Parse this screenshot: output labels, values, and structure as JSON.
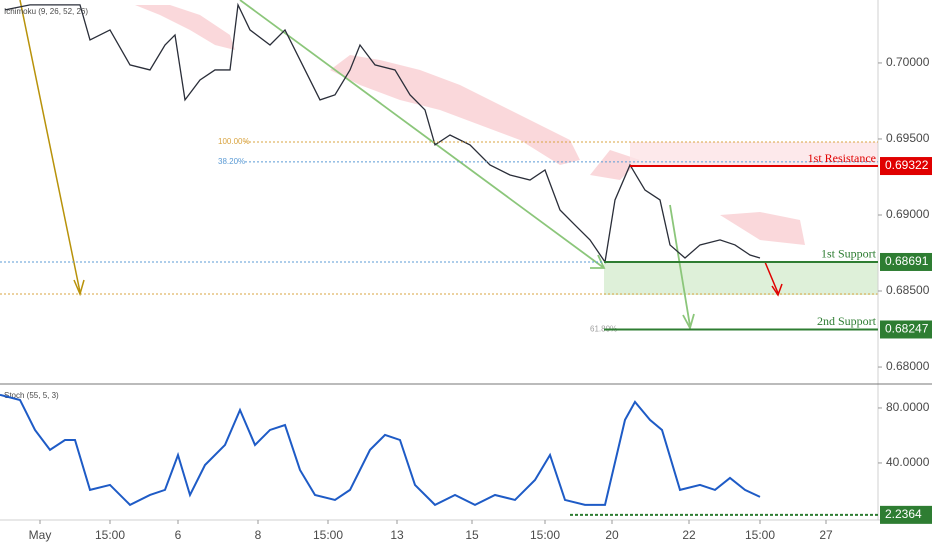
{
  "chart_data": [
    {
      "type": "line",
      "indicator_label": "Ichimoku (9, 26, 52, 26)",
      "color": "#2a2e39",
      "x": [
        1,
        6,
        12,
        16,
        18,
        22,
        26,
        30,
        33,
        35,
        37,
        40,
        43,
        46,
        47.6,
        50,
        54,
        57,
        60,
        64,
        67,
        70,
        72,
        75,
        79,
        82,
        85,
        87,
        90,
        94,
        98,
        102,
        106,
        109,
        112,
        115,
        118,
        121,
        123,
        126,
        129,
        132,
        134,
        137,
        140,
        144,
        147,
        150,
        152
      ],
      "values": [
        0.70349,
        0.70382,
        0.70382,
        0.70382,
        0.70151,
        0.70217,
        0.69987,
        0.69954,
        0.70118,
        0.70184,
        0.69757,
        0.69888,
        0.69954,
        0.69954,
        0.70382,
        0.70217,
        0.70118,
        0.70217,
        0.7002,
        0.69757,
        0.6979,
        0.69954,
        0.70118,
        0.69987,
        0.69954,
        0.6979,
        0.69691,
        0.69461,
        0.69526,
        0.69461,
        0.69329,
        0.69263,
        0.6923,
        0.69296,
        0.69033,
        0.68934,
        0.68836,
        0.68691,
        0.69099,
        0.69329,
        0.69164,
        0.69099,
        0.68803,
        0.68717,
        0.68803,
        0.68836,
        0.68803,
        0.68737,
        0.68717
      ],
      "xlim": [
        0,
        175.6
      ],
      "ylim": [
        0.67895,
        0.70414
      ],
      "yticks": [
        {
          "value": 0.7,
          "label": "0.70000"
        },
        {
          "value": 0.695,
          "label": "0.69500"
        },
        {
          "value": 0.69,
          "label": "0.69000"
        },
        {
          "value": 0.685,
          "label": "0.68500"
        },
        {
          "value": 0.68,
          "label": "0.68000"
        }
      ],
      "levels": [
        {
          "label": "1st Resistance",
          "value": 0.69322,
          "value_label": "0.69322",
          "color": "#e00000"
        },
        {
          "label": "1st Support",
          "value": 0.68691,
          "value_label": "0.68691",
          "color": "#2e7d32"
        },
        {
          "label": "2nd Support",
          "value": 0.68247,
          "value_label": "0.68247",
          "color": "#2e7d32"
        }
      ],
      "fib_levels": [
        {
          "label": "100.00%",
          "value": 0.6948,
          "color": "#d9a441"
        },
        {
          "label": "38.20%",
          "value": 0.69349,
          "color": "#5b9bd5"
        },
        {
          "label": "61.80%",
          "value": 0.68247,
          "color": "#9e9e9e"
        }
      ]
    },
    {
      "type": "line",
      "indicator_label": "Stoch (55, 5, 3)",
      "color": "#1e5bc6",
      "x": [
        0,
        4,
        7,
        10,
        13,
        15,
        18,
        22,
        26,
        30,
        33,
        35.6,
        38,
        41,
        45,
        48,
        51,
        54,
        57,
        60,
        63,
        67,
        70,
        74,
        77,
        80,
        83,
        87,
        91,
        95,
        99,
        103,
        107,
        110,
        113,
        117,
        121,
        125,
        127,
        130,
        132.4,
        136,
        140,
        143,
        146,
        149,
        152
      ],
      "values": [
        89.5,
        85.8,
        64,
        49.5,
        56.7,
        56.7,
        20.4,
        24,
        9.5,
        16.7,
        20.4,
        45.8,
        16.7,
        38.5,
        53.1,
        78.5,
        53.1,
        64,
        67.6,
        34.9,
        16.7,
        13.1,
        20.4,
        49.5,
        60.4,
        56.7,
        24,
        9.5,
        16.7,
        9.5,
        16.7,
        13.1,
        27.6,
        45.8,
        13.1,
        9.5,
        9.5,
        71.3,
        84.4,
        71.3,
        64,
        20.4,
        24,
        20.4,
        29.1,
        20.4,
        15.3
      ],
      "xlim": [
        0,
        175.6
      ],
      "ylim": [
        -1.5,
        96.7
      ],
      "yticks": [
        {
          "value": 80,
          "label": "80.0000"
        },
        {
          "value": 40,
          "label": "40.0000"
        }
      ],
      "level": {
        "value": 2.2364,
        "value_label": "2.2364",
        "color": "#2e7d32"
      },
      "xticks": [
        {
          "value": 8,
          "label": "May"
        },
        {
          "value": 22,
          "label": "15:00"
        },
        {
          "value": 35.6,
          "label": "6"
        },
        {
          "value": 51.6,
          "label": "8"
        },
        {
          "value": 65.6,
          "label": "15:00"
        },
        {
          "value": 79.4,
          "label": "13"
        },
        {
          "value": 94.4,
          "label": "15"
        },
        {
          "value": 109,
          "label": "15:00"
        },
        {
          "value": 122.4,
          "label": "20"
        },
        {
          "value": 137.8,
          "label": "22"
        },
        {
          "value": 152,
          "label": "15:00"
        },
        {
          "value": 165.2,
          "label": "27"
        }
      ]
    }
  ]
}
